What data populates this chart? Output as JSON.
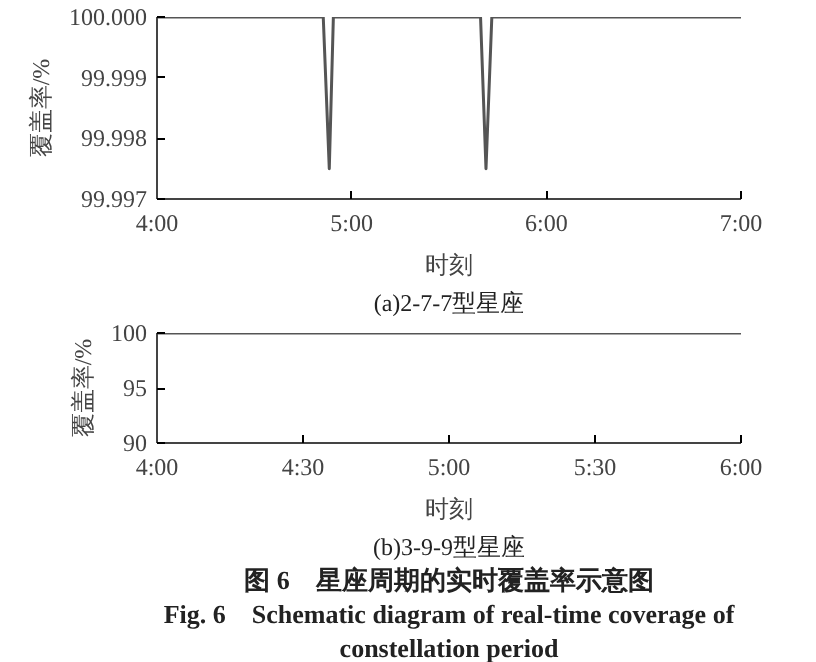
{
  "chart_data": [
    {
      "type": "line",
      "xlabel": "时刻",
      "ylabel": "覆盖率/%",
      "annotations": [
        "(a)2-7-7型星座"
      ],
      "x": [
        4.0,
        4.854,
        4.885,
        4.906,
        5.662,
        5.69,
        5.72,
        7.0
      ],
      "series": [
        {
          "color": "#555555",
          "values": [
            100.0,
            100.0,
            99.9975,
            100.0,
            100.0,
            99.9975,
            100.0,
            100.0
          ]
        }
      ],
      "xlim": [
        4,
        7
      ],
      "xticks": [
        {
          "value": 4,
          "label": "4:00"
        },
        {
          "value": 5,
          "label": "5:00"
        },
        {
          "value": 6,
          "label": "6:00"
        },
        {
          "value": 7,
          "label": "7:00"
        }
      ],
      "ylim": [
        99.997,
        100.0
      ],
      "yticks": [
        {
          "value": 99.997,
          "label": "99.997"
        },
        {
          "value": 99.998,
          "label": "99.998"
        },
        {
          "value": 99.999,
          "label": "99.999"
        },
        {
          "value": 100.0,
          "label": "100.000"
        }
      ],
      "grid": false
    },
    {
      "type": "line",
      "xlabel": "时刻",
      "ylabel": "覆盖率/%",
      "annotations": [
        "(b)3-9-9型星座",
        "图 6　星座周期的实时覆盖率示意图",
        "Fig. 6　Schematic diagram of real-time coverage of",
        "constellation period"
      ],
      "x": [
        4.0,
        6.0
      ],
      "series": [
        {
          "color": "#555555",
          "values": [
            100,
            100
          ]
        }
      ],
      "xlim": [
        4,
        6
      ],
      "xticks": [
        {
          "value": 4,
          "label": "4:00"
        },
        {
          "value": 4.5,
          "label": "4:30"
        },
        {
          "value": 5,
          "label": "5:00"
        },
        {
          "value": 5.5,
          "label": "5:30"
        },
        {
          "value": 6,
          "label": "6:00"
        }
      ],
      "ylim": [
        90,
        100
      ],
      "yticks": [
        90,
        95,
        100
      ],
      "grid": false
    }
  ]
}
